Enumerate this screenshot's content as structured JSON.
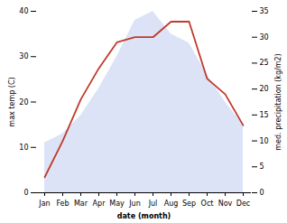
{
  "chart_data": {
    "type": "area",
    "categories": [
      "Jan",
      "Feb",
      "Mar",
      "Apr",
      "May",
      "Jun",
      "Jul",
      "Aug",
      "Sep",
      "Oct",
      "Nov",
      "Dec"
    ],
    "series": [
      {
        "type": "area",
        "color": "#c0ccee",
        "values": [
          11,
          13,
          17,
          23,
          30,
          38,
          40,
          35,
          33,
          26,
          20,
          15
        ]
      },
      {
        "type": "line",
        "color": "#c0392b",
        "axis": "y2",
        "values": [
          3,
          10,
          18,
          24,
          29,
          30,
          30,
          33,
          33,
          22,
          19,
          13
        ]
      }
    ],
    "xlabel": "date (month)",
    "ylabel": "max temp (C)",
    "y2label": "med. precipitation (kg/m2)",
    "ylim": [
      0,
      40
    ],
    "yticks": [
      0,
      10,
      20,
      30,
      40
    ],
    "y2lim": [
      0,
      35
    ],
    "y2ticks": [
      0,
      5,
      10,
      15,
      20,
      25,
      30,
      35
    ],
    "grid": false
  }
}
